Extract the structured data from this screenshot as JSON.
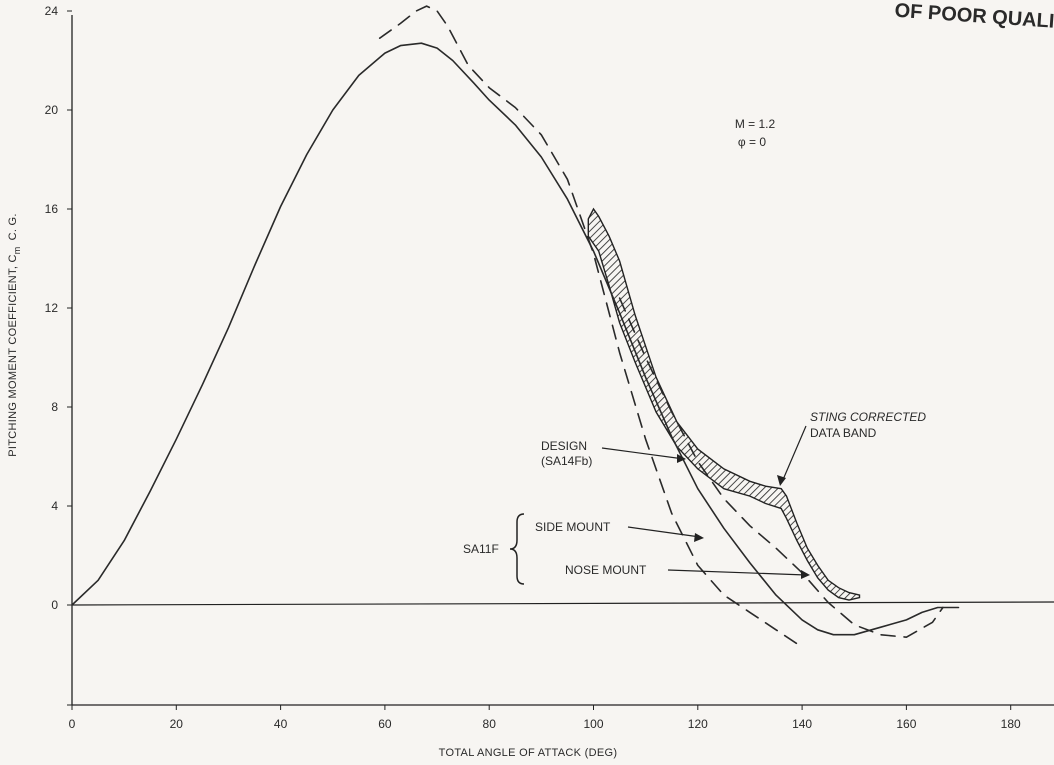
{
  "chart_data": {
    "type": "line",
    "title": "",
    "xlabel": "TOTAL ANGLE OF ATTACK (DEG)",
    "ylabel_main": "PITCHING MOMENT COEFFICIENT, C",
    "ylabel_sub": "m",
    "ylabel_suffix": "C. G.",
    "xlim": [
      0,
      180
    ],
    "ylim": [
      -4,
      24
    ],
    "x_ticks": [
      0,
      20,
      40,
      60,
      80,
      100,
      120,
      140,
      160,
      180
    ],
    "y_ticks": [
      0,
      4,
      8,
      12,
      16,
      20,
      24
    ],
    "grid": false,
    "header_text": "OF POOR QUALI",
    "conditions": [
      "M = 1.2",
      "φ = 0"
    ],
    "series": [
      {
        "key": "design",
        "style": "solid",
        "x": [
          0,
          5,
          10,
          15,
          20,
          25,
          30,
          35,
          40,
          45,
          50,
          55,
          60,
          63,
          67,
          70,
          73,
          77,
          80,
          85,
          90,
          95,
          100,
          105,
          110,
          115,
          120,
          125,
          130,
          135,
          140,
          143,
          146,
          150,
          155,
          160,
          163,
          166,
          170
        ],
        "y": [
          0,
          1.0,
          2.6,
          4.6,
          6.7,
          8.9,
          11.2,
          13.7,
          16.1,
          18.2,
          20.0,
          21.4,
          22.3,
          22.6,
          22.7,
          22.5,
          22.0,
          21.1,
          20.4,
          19.4,
          18.1,
          16.4,
          14.3,
          11.8,
          9.2,
          6.8,
          4.7,
          3.1,
          1.7,
          0.4,
          -0.6,
          -1.0,
          -1.2,
          -1.2,
          -0.9,
          -0.6,
          -0.3,
          -0.1,
          -0.1
        ]
      },
      {
        "key": "side_mount",
        "style": "dashed",
        "x": [
          59,
          63,
          66,
          68,
          70,
          72,
          74,
          76,
          80,
          85,
          90,
          95,
          100,
          105,
          110,
          115,
          120,
          125,
          130,
          135,
          140
        ],
        "y": [
          22.9,
          23.5,
          24.0,
          24.2,
          24.0,
          23.4,
          22.6,
          21.8,
          20.9,
          20.1,
          19.0,
          17.2,
          14.2,
          10.2,
          6.7,
          3.7,
          1.6,
          0.4,
          -0.3,
          -1.0,
          -1.7
        ]
      },
      {
        "key": "nose_mount",
        "style": "dashed",
        "x": [
          105,
          110,
          115,
          120,
          125,
          130,
          135,
          140,
          145,
          150,
          155,
          160,
          165,
          167
        ],
        "y": [
          12.4,
          10.0,
          7.8,
          5.8,
          4.3,
          3.2,
          2.3,
          1.3,
          0.1,
          -0.8,
          -1.2,
          -1.3,
          -0.7,
          -0.1
        ]
      }
    ],
    "data_band": {
      "upper": {
        "x": [
          99,
          100,
          101,
          103,
          105,
          108,
          112,
          116,
          120,
          125,
          130,
          133,
          136,
          137,
          139,
          141,
          143,
          145,
          147,
          149,
          151
        ],
        "y": [
          15.6,
          16.0,
          15.7,
          14.9,
          13.9,
          11.7,
          9.2,
          7.4,
          6.3,
          5.5,
          5.0,
          4.8,
          4.7,
          4.4,
          3.3,
          2.3,
          1.6,
          1.0,
          0.7,
          0.5,
          0.4
        ]
      },
      "lower": {
        "x": [
          99,
          101,
          103,
          105,
          108,
          112,
          116,
          120,
          125,
          130,
          133,
          136,
          137,
          139,
          141,
          143,
          145,
          147,
          149,
          151
        ],
        "y": [
          14.9,
          14.3,
          12.9,
          11.4,
          9.8,
          7.8,
          6.4,
          5.5,
          4.7,
          4.4,
          4.1,
          3.9,
          3.5,
          2.6,
          1.8,
          1.1,
          0.6,
          0.3,
          0.2,
          0.3
        ]
      }
    },
    "annotations": {
      "design_label_1": "DESIGN",
      "design_label_2": "(SA14Fb)",
      "band_label_1": "STING CORRECTED",
      "band_label_2": "DATA BAND",
      "side_mount_label": "SIDE MOUNT",
      "nose_mount_label": "NOSE MOUNT",
      "group_label": "SA11F"
    }
  }
}
